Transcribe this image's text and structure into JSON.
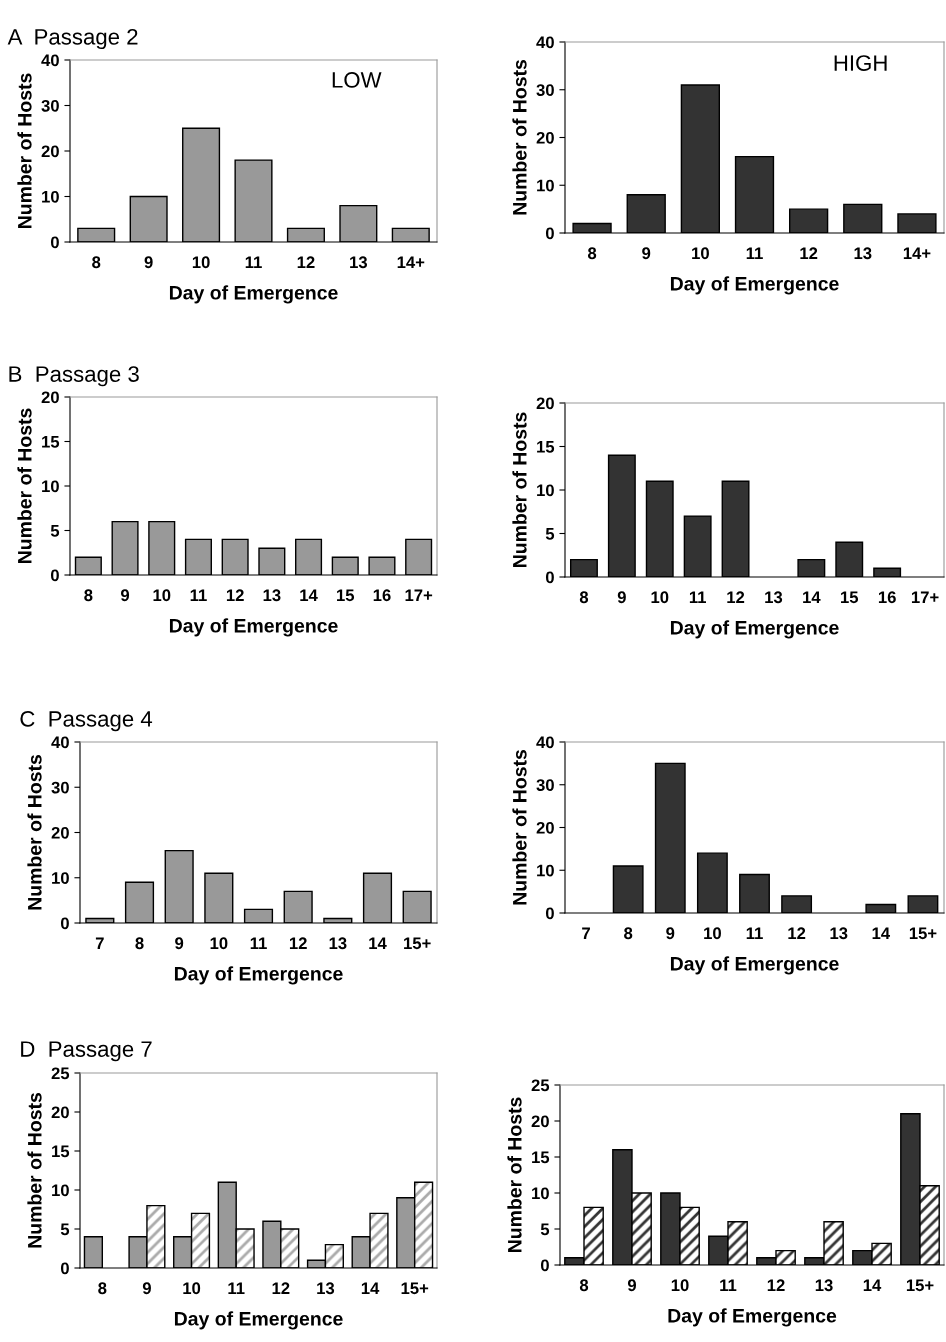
{
  "chart_data": [
    {
      "type": "bar",
      "title": "A  Passage 2",
      "xlabel": "Day of Emergence",
      "ylabel": "Number of Hosts",
      "annotations": [
        "LOW"
      ],
      "categories": [
        "8",
        "9",
        "10",
        "11",
        "12",
        "13",
        "14+"
      ],
      "series": [
        {
          "color": "#999999",
          "values": [
            3,
            10,
            25,
            18,
            3,
            8,
            3
          ]
        }
      ],
      "ylim": [
        0,
        40
      ],
      "yticks": [
        0,
        10,
        20,
        30,
        40
      ],
      "grid": false,
      "legend": false
    },
    {
      "type": "bar",
      "xlabel": "Day of Emergence",
      "ylabel": "Number of Hosts",
      "annotations": [
        "HIGH"
      ],
      "categories": [
        "8",
        "9",
        "10",
        "11",
        "12",
        "13",
        "14+"
      ],
      "series": [
        {
          "color": "#333333",
          "values": [
            2,
            8,
            31,
            16,
            5,
            6,
            4
          ]
        }
      ],
      "ylim": [
        0,
        40
      ],
      "yticks": [
        0,
        10,
        20,
        30,
        40
      ],
      "grid": false,
      "legend": false
    },
    {
      "type": "bar",
      "title": "B  Passage 3",
      "xlabel": "Day of Emergence",
      "ylabel": "Number of Hosts",
      "categories": [
        "8",
        "9",
        "10",
        "11",
        "12",
        "13",
        "14",
        "15",
        "16",
        "17+"
      ],
      "series": [
        {
          "color": "#999999",
          "values": [
            2,
            6,
            6,
            4,
            4,
            3,
            4,
            2,
            2,
            4
          ]
        }
      ],
      "ylim": [
        0,
        20
      ],
      "yticks": [
        0,
        5,
        10,
        15,
        20
      ],
      "grid": false,
      "legend": false
    },
    {
      "type": "bar",
      "xlabel": "Day of Emergence",
      "ylabel": "Number of Hosts",
      "categories": [
        "8",
        "9",
        "10",
        "11",
        "12",
        "13",
        "14",
        "15",
        "16",
        "17+"
      ],
      "series": [
        {
          "color": "#333333",
          "values": [
            2,
            14,
            11,
            7,
            11,
            0,
            2,
            4,
            1,
            0
          ]
        }
      ],
      "ylim": [
        0,
        20
      ],
      "yticks": [
        0,
        5,
        10,
        15,
        20
      ],
      "grid": false,
      "legend": false
    },
    {
      "type": "bar",
      "title": "C  Passage 4",
      "xlabel": "Day of Emergence",
      "ylabel": "Number of Hosts",
      "categories": [
        "7",
        "8",
        "9",
        "10",
        "11",
        "12",
        "13",
        "14",
        "15+"
      ],
      "series": [
        {
          "color": "#999999",
          "values": [
            1,
            9,
            16,
            11,
            3,
            7,
            1,
            11,
            7
          ]
        }
      ],
      "ylim": [
        0,
        40
      ],
      "yticks": [
        0,
        10,
        20,
        30,
        40
      ],
      "grid": false,
      "legend": false
    },
    {
      "type": "bar",
      "xlabel": "Day of Emergence",
      "ylabel": "Number of Hosts",
      "categories": [
        "7",
        "8",
        "9",
        "10",
        "11",
        "12",
        "13",
        "14",
        "15+"
      ],
      "series": [
        {
          "color": "#333333",
          "values": [
            0,
            11,
            35,
            14,
            9,
            4,
            0,
            2,
            4
          ]
        }
      ],
      "ylim": [
        0,
        40
      ],
      "yticks": [
        0,
        10,
        20,
        30,
        40
      ],
      "grid": false,
      "legend": false
    },
    {
      "type": "bar",
      "title": "D  Passage 7",
      "xlabel": "Day of Emergence",
      "ylabel": "Number of Hosts",
      "categories": [
        "8",
        "9",
        "10",
        "11",
        "12",
        "13",
        "14",
        "15+"
      ],
      "series": [
        {
          "color": "#999999",
          "values": [
            4,
            4,
            4,
            11,
            6,
            1,
            4,
            9
          ]
        },
        {
          "color": "#aaaaaa",
          "values": [
            0,
            8,
            7,
            5,
            5,
            3,
            7,
            11
          ]
        }
      ],
      "ylim": [
        0,
        25
      ],
      "yticks": [
        0,
        5,
        10,
        15,
        20,
        25
      ],
      "grid": false,
      "legend": false
    },
    {
      "type": "bar",
      "xlabel": "Day of Emergence",
      "ylabel": "Number of Hosts",
      "categories": [
        "8",
        "9",
        "10",
        "11",
        "12",
        "13",
        "14",
        "15+"
      ],
      "series": [
        {
          "color": "#333333",
          "values": [
            1,
            16,
            10,
            4,
            1,
            1,
            2,
            21
          ]
        },
        {
          "color": "#333333",
          "values": [
            8,
            10,
            8,
            6,
            2,
            6,
            3,
            11
          ]
        }
      ],
      "ylim": [
        0,
        25
      ],
      "yticks": [
        0,
        5,
        10,
        15,
        20,
        25
      ],
      "grid": false,
      "legend": false
    }
  ]
}
